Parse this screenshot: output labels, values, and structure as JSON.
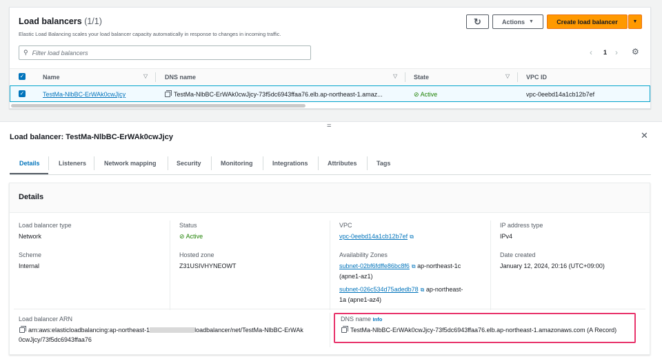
{
  "list": {
    "title": "Load balancers",
    "count": "(1/1)",
    "description": "Elastic Load Balancing scales your load balancer capacity automatically in response to changes in incoming traffic.",
    "actions_label": "Actions",
    "create_label": "Create load balancer",
    "filter_placeholder": "Filter load balancers",
    "page": "1",
    "columns": [
      "Name",
      "DNS name",
      "State",
      "VPC ID"
    ],
    "rows": [
      {
        "name": "TestMa-NlbBC-ErWAk0cwJjcy",
        "dns": "TestMa-NlbBC-ErWAk0cwJjcy-73f5dc6943ffaa76.elb.ap-northeast-1.amaz...",
        "state": "Active",
        "vpc": "vpc-0eebd14a1cb12b7ef"
      }
    ]
  },
  "detail": {
    "title": "Load balancer: TestMa-NlbBC-ErWAk0cwJjcy",
    "tabs": [
      "Details",
      "Listeners",
      "Network mapping",
      "Security",
      "Monitoring",
      "Integrations",
      "Attributes",
      "Tags"
    ],
    "section_title": "Details",
    "lb_type_label": "Load balancer type",
    "lb_type": "Network",
    "scheme_label": "Scheme",
    "scheme": "Internal",
    "status_label": "Status",
    "status": "Active",
    "hosted_zone_label": "Hosted zone",
    "hosted_zone": "Z31USIVHYNEOWT",
    "vpc_label": "VPC",
    "vpc": "vpc-0eebd14a1cb12b7ef",
    "az_label": "Availability Zones",
    "az": [
      {
        "subnet": "subnet-02bf6fdffe86bc8f6",
        "zone1": "ap-northeast-1c",
        "zone2": "(apne1-az1)"
      },
      {
        "subnet": "subnet-026c534d75adedb78",
        "zone1": "ap-northeast-",
        "zone2": "1a (apne1-az4)"
      }
    ],
    "ip_type_label": "IP address type",
    "ip_type": "IPv4",
    "date_label": "Date created",
    "date": "January 12, 2024, 20:16 (UTC+09:00)",
    "arn_label": "Load balancer ARN",
    "arn_line1_a": "arn:aws:elasticloadbalancing:ap-northeast-1",
    "arn_line1_b": "loadbalancer/net/TestMa-NlbBC-ErWAk",
    "arn_line2": "0cwJjcy/73f5dc6943ffaa76",
    "dns_label": "DNS name",
    "dns_info": "Info",
    "dns": "TestMa-NlbBC-ErWAk0cwJjcy-73f5dc6943ffaa76.elb.ap-northeast-1.amazonaws.com (A Record)"
  },
  "colors": {
    "accent": "#0073bb",
    "primary": "#ff9900",
    "active": "#1d8102",
    "highlight": "#e8336b"
  }
}
